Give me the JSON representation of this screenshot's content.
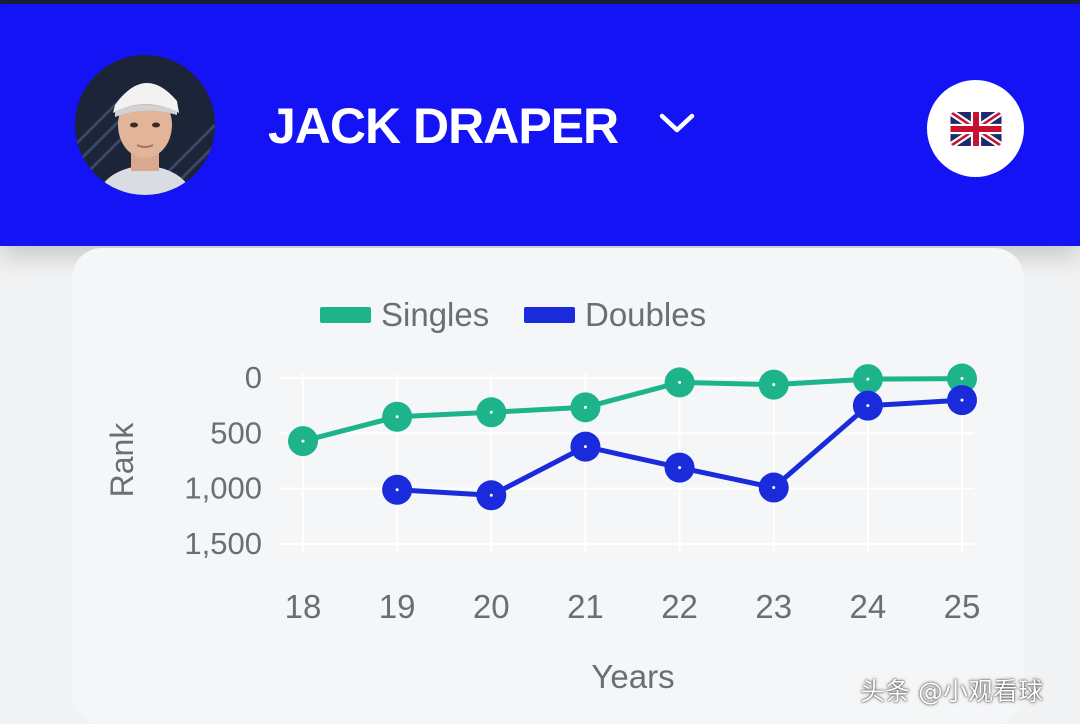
{
  "header": {
    "player_name": "JACK DRAPER",
    "avatar_icon": "player-photo",
    "dropdown_icon": "chevron-down-icon",
    "flag_icon": "uk-flag-icon",
    "background_color": "#1313f5"
  },
  "chart_data": {
    "type": "line",
    "categories": [
      "18",
      "19",
      "20",
      "21",
      "22",
      "23",
      "24",
      "25"
    ],
    "series": [
      {
        "name": "Singles",
        "color": "#1db48c",
        "values": [
          570,
          350,
          310,
          265,
          40,
          60,
          10,
          5
        ]
      },
      {
        "name": "Doubles",
        "color": "#1a2bdc",
        "values": [
          null,
          1010,
          1060,
          620,
          810,
          990,
          250,
          200
        ]
      }
    ],
    "xlabel": "Years",
    "ylabel": "Rank",
    "yticks": [
      "0",
      "500",
      "1,000",
      "1,500"
    ],
    "ytick_values": [
      0,
      500,
      1000,
      1500
    ],
    "ylim": [
      0,
      1500
    ],
    "y_inverted": true,
    "grid": true,
    "legend_position": "top-center"
  },
  "watermark": "头条 @小观看球"
}
